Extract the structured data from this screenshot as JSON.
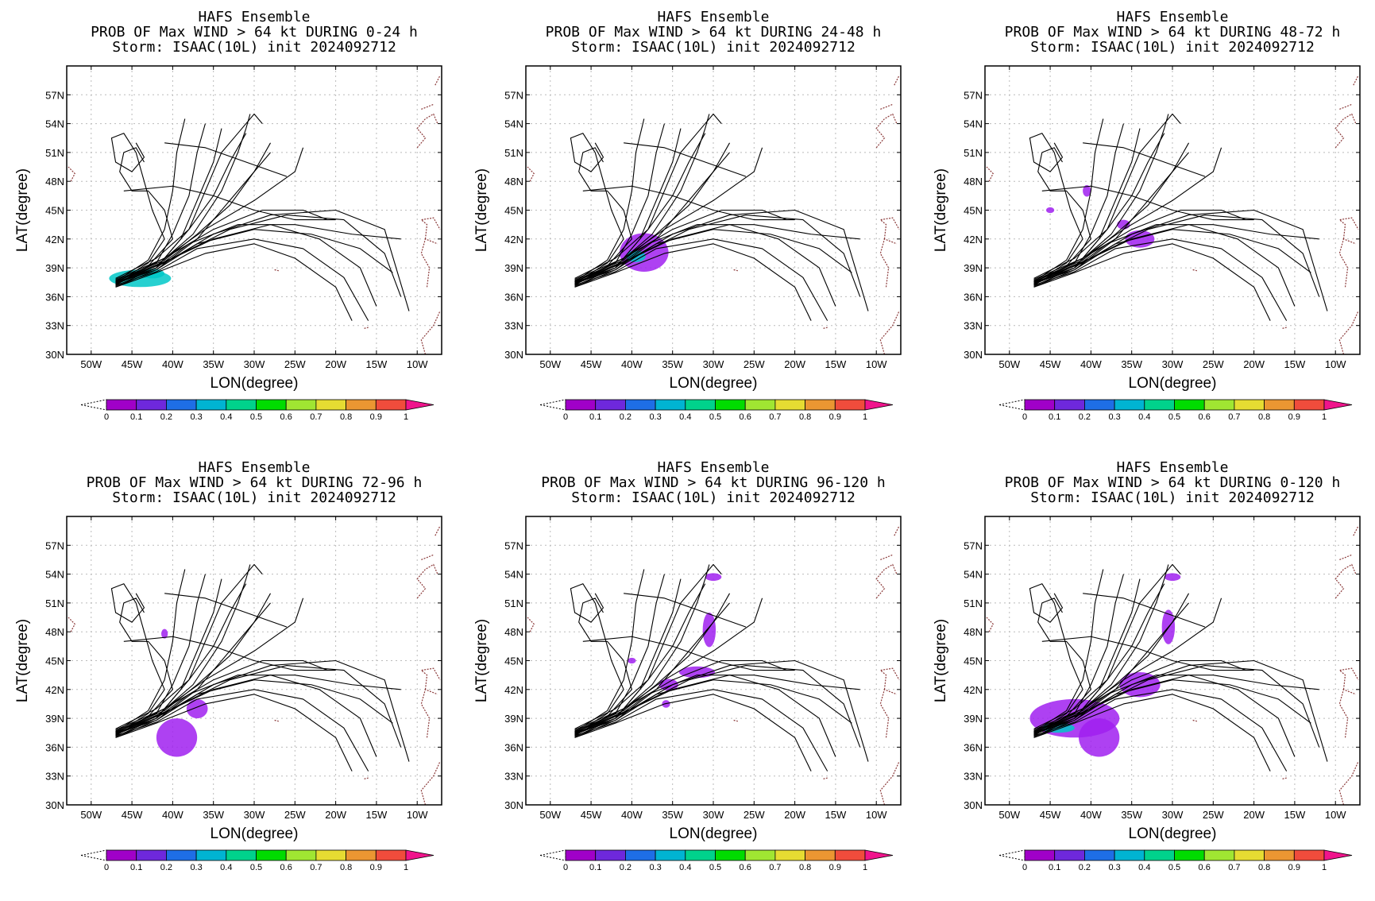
{
  "colors": {
    "track": "#000000",
    "coast": "#8b3a3a",
    "grid": "#bbbbbb",
    "prob": "#a020f0",
    "prob_high": "#00c8c8"
  },
  "colorbar": {
    "labels": [
      "0",
      "0.1",
      "0.2",
      "0.3",
      "0.4",
      "0.5",
      "0.6",
      "0.7",
      "0.8",
      "0.9",
      "1"
    ],
    "colors": [
      "#a000c8",
      "#6e28dc",
      "#1e6ee6",
      "#00b4d2",
      "#00d28c",
      "#00dc00",
      "#a0e632",
      "#e6dc32",
      "#eb9632",
      "#f04c3c",
      "#f0148c"
    ]
  },
  "chart_data": [
    {
      "type": "heatmap",
      "title": "HAFS Ensemble",
      "subtitle": "PROB OF Max WIND > 64 kt DURING  0-24 h",
      "storm": "Storm: ISAAC(10L) init 2024092712",
      "xlabel": "LON(degree)",
      "ylabel": "LAT(degree)",
      "x_ticks": [
        "50W",
        "45W",
        "40W",
        "35W",
        "30W",
        "25W",
        "20W",
        "15W",
        "10W"
      ],
      "y_ticks": [
        "30N",
        "33N",
        "36N",
        "39N",
        "42N",
        "45N",
        "48N",
        "51N",
        "54N",
        "57N"
      ],
      "xlim": [
        -53,
        -7
      ],
      "ylim": [
        30,
        60
      ],
      "prob_regions": [
        {
          "lon": -44,
          "lat": 37.9,
          "rx": 3.8,
          "ry": 0.9,
          "p": 0.3
        },
        {
          "lon": -42.5,
          "lat": 38.4,
          "rx": 1.5,
          "ry": 0.5,
          "p": 0.5
        }
      ]
    },
    {
      "type": "heatmap",
      "title": "HAFS Ensemble",
      "subtitle": "PROB OF Max WIND > 64 kt DURING 24-48 h",
      "storm": "Storm: ISAAC(10L) init 2024092712",
      "xlabel": "LON(degree)",
      "ylabel": "LAT(degree)",
      "x_ticks": [
        "50W",
        "45W",
        "40W",
        "35W",
        "30W",
        "25W",
        "20W",
        "15W",
        "10W"
      ],
      "y_ticks": [
        "30N",
        "33N",
        "36N",
        "39N",
        "42N",
        "45N",
        "48N",
        "51N",
        "54N",
        "57N"
      ],
      "xlim": [
        -53,
        -7
      ],
      "ylim": [
        30,
        60
      ],
      "prob_regions": [
        {
          "lon": -38.5,
          "lat": 40.6,
          "rx": 3,
          "ry": 2,
          "p": 0.2
        },
        {
          "lon": -39.5,
          "lat": 40.2,
          "rx": 1.2,
          "ry": 0.6,
          "p": 0.4
        }
      ]
    },
    {
      "type": "heatmap",
      "title": "HAFS Ensemble",
      "subtitle": "PROB OF Max WIND > 64 kt DURING 48-72 h",
      "storm": "Storm: ISAAC(10L) init 2024092712",
      "xlabel": "LON(degree)",
      "ylabel": "LAT(degree)",
      "x_ticks": [
        "50W",
        "45W",
        "40W",
        "35W",
        "30W",
        "25W",
        "20W",
        "15W",
        "10W"
      ],
      "y_ticks": [
        "30N",
        "33N",
        "36N",
        "39N",
        "42N",
        "45N",
        "48N",
        "51N",
        "54N",
        "57N"
      ],
      "xlim": [
        -53,
        -7
      ],
      "ylim": [
        30,
        60
      ],
      "prob_regions": [
        {
          "lon": -34,
          "lat": 42,
          "rx": 1.8,
          "ry": 0.9,
          "p": 0.1
        },
        {
          "lon": -36,
          "lat": 43.5,
          "rx": 0.8,
          "ry": 0.5,
          "p": 0.1
        },
        {
          "lon": -40.5,
          "lat": 47,
          "rx": 0.5,
          "ry": 0.6,
          "p": 0.1
        },
        {
          "lon": -45,
          "lat": 45,
          "rx": 0.5,
          "ry": 0.3,
          "p": 0.1
        }
      ]
    },
    {
      "type": "heatmap",
      "title": "HAFS Ensemble",
      "subtitle": "PROB OF Max WIND > 64 kt DURING 72-96 h",
      "storm": "Storm: ISAAC(10L) init 2024092712",
      "xlabel": "LON(degree)",
      "ylabel": "LAT(degree)",
      "x_ticks": [
        "50W",
        "45W",
        "40W",
        "35W",
        "30W",
        "25W",
        "20W",
        "15W",
        "10W"
      ],
      "y_ticks": [
        "30N",
        "33N",
        "36N",
        "39N",
        "42N",
        "45N",
        "48N",
        "51N",
        "54N",
        "57N"
      ],
      "xlim": [
        -53,
        -7
      ],
      "ylim": [
        30,
        60
      ],
      "prob_regions": [
        {
          "lon": -39.5,
          "lat": 37,
          "rx": 2.5,
          "ry": 2,
          "p": 0.1
        },
        {
          "lon": -37,
          "lat": 40,
          "rx": 1.3,
          "ry": 1,
          "p": 0.1
        },
        {
          "lon": -41,
          "lat": 47.8,
          "rx": 0.4,
          "ry": 0.5,
          "p": 0.1
        }
      ]
    },
    {
      "type": "heatmap",
      "title": "HAFS Ensemble",
      "subtitle": "PROB OF Max WIND > 64 kt DURING 96-120 h",
      "storm": "Storm: ISAAC(10L) init 2024092712",
      "xlabel": "LON(degree)",
      "ylabel": "LAT(degree)",
      "x_ticks": [
        "50W",
        "45W",
        "40W",
        "35W",
        "30W",
        "25W",
        "20W",
        "15W",
        "10W"
      ],
      "y_ticks": [
        "30N",
        "33N",
        "36N",
        "39N",
        "42N",
        "45N",
        "48N",
        "51N",
        "54N",
        "57N"
      ],
      "xlim": [
        -53,
        -7
      ],
      "ylim": [
        30,
        60
      ],
      "prob_regions": [
        {
          "lon": -30.5,
          "lat": 48.2,
          "rx": 0.8,
          "ry": 1.8,
          "p": 0.1
        },
        {
          "lon": -30,
          "lat": 53.7,
          "rx": 1,
          "ry": 0.4,
          "p": 0.1
        },
        {
          "lon": -32,
          "lat": 43.8,
          "rx": 2.2,
          "ry": 0.6,
          "p": 0.1
        },
        {
          "lon": -35.5,
          "lat": 42.5,
          "rx": 1.2,
          "ry": 0.6,
          "p": 0.1
        },
        {
          "lon": -40,
          "lat": 45,
          "rx": 0.5,
          "ry": 0.3,
          "p": 0.1
        },
        {
          "lon": -35.8,
          "lat": 40.5,
          "rx": 0.5,
          "ry": 0.4,
          "p": 0.1
        }
      ]
    },
    {
      "type": "heatmap",
      "title": "HAFS Ensemble",
      "subtitle": "PROB OF Max WIND > 64 kt DURING 0-120 h",
      "storm": "Storm: ISAAC(10L) init 2024092712",
      "xlabel": "LON(degree)",
      "ylabel": "LAT(degree)",
      "x_ticks": [
        "50W",
        "45W",
        "40W",
        "35W",
        "30W",
        "25W",
        "20W",
        "15W",
        "10W"
      ],
      "y_ticks": [
        "30N",
        "33N",
        "36N",
        "39N",
        "42N",
        "45N",
        "48N",
        "51N",
        "54N",
        "57N"
      ],
      "xlim": [
        -53,
        -7
      ],
      "ylim": [
        30,
        60
      ],
      "prob_regions": [
        {
          "lon": -42,
          "lat": 39,
          "rx": 5.5,
          "ry": 2,
          "p": 0.2
        },
        {
          "lon": -39,
          "lat": 37,
          "rx": 2.5,
          "ry": 2,
          "p": 0.1
        },
        {
          "lon": -34,
          "lat": 42.5,
          "rx": 2.5,
          "ry": 1.3,
          "p": 0.1
        },
        {
          "lon": -30.5,
          "lat": 48.5,
          "rx": 0.8,
          "ry": 1.8,
          "p": 0.1
        },
        {
          "lon": -30,
          "lat": 53.7,
          "rx": 1,
          "ry": 0.4,
          "p": 0.1
        },
        {
          "lon": -44,
          "lat": 38,
          "rx": 2,
          "ry": 0.5,
          "p": 0.4
        }
      ]
    }
  ],
  "tracks": [
    [
      [
        -47,
        37.5
      ],
      [
        -42,
        39
      ],
      [
        -38,
        41.5
      ],
      [
        -32,
        43.5
      ],
      [
        -25,
        43.5
      ],
      [
        -18,
        42.5
      ],
      [
        -12,
        42
      ]
    ],
    [
      [
        -47,
        37.4
      ],
      [
        -42,
        38.8
      ],
      [
        -37,
        41.5
      ],
      [
        -30,
        43
      ],
      [
        -23,
        42.5
      ],
      [
        -17,
        41
      ],
      [
        -13,
        38.5
      ]
    ],
    [
      [
        -47,
        37.2
      ],
      [
        -42,
        38.6
      ],
      [
        -37,
        41
      ],
      [
        -30,
        42
      ],
      [
        -24,
        41
      ],
      [
        -19,
        38
      ],
      [
        -16,
        33.5
      ]
    ],
    [
      [
        -47,
        37
      ],
      [
        -42,
        38.5
      ],
      [
        -36,
        40.5
      ],
      [
        -30,
        41.5
      ],
      [
        -25,
        40
      ],
      [
        -20,
        37
      ],
      [
        -18,
        33.5
      ]
    ],
    [
      [
        -47,
        37.6
      ],
      [
        -41,
        39.5
      ],
      [
        -35,
        42.5
      ],
      [
        -28,
        44.5
      ],
      [
        -20,
        45
      ],
      [
        -14,
        43
      ],
      [
        -11,
        34.5
      ]
    ],
    [
      [
        -47,
        37.8
      ],
      [
        -41,
        40
      ],
      [
        -36,
        43
      ],
      [
        -30,
        46
      ],
      [
        -25,
        49
      ],
      [
        -24,
        51.5
      ]
    ],
    [
      [
        -47,
        37.7
      ],
      [
        -41,
        39.8
      ],
      [
        -37,
        42.5
      ],
      [
        -33,
        45.5
      ],
      [
        -30,
        49
      ],
      [
        -28,
        52
      ]
    ],
    [
      [
        -47,
        37.9
      ],
      [
        -42,
        40
      ],
      [
        -38,
        43
      ],
      [
        -35,
        46.5
      ],
      [
        -33,
        50
      ],
      [
        -31,
        53
      ]
    ],
    [
      [
        -47,
        37.3
      ],
      [
        -42,
        39
      ],
      [
        -39,
        42
      ],
      [
        -37,
        46
      ],
      [
        -35,
        50
      ],
      [
        -34,
        53.5
      ]
    ],
    [
      [
        -47,
        37.5
      ],
      [
        -42,
        39.5
      ],
      [
        -40,
        42.5
      ],
      [
        -38,
        46.5
      ],
      [
        -37,
        51
      ],
      [
        -36,
        54
      ]
    ],
    [
      [
        -47,
        37.6
      ],
      [
        -43,
        39.8
      ],
      [
        -41,
        43
      ],
      [
        -40,
        47
      ],
      [
        -39.5,
        51
      ],
      [
        -38.5,
        54.5
      ]
    ],
    [
      [
        -47,
        37.4
      ],
      [
        -43,
        39.5
      ],
      [
        -41,
        42
      ],
      [
        -42.5,
        45
      ],
      [
        -43.5,
        48
      ],
      [
        -44.5,
        51
      ],
      [
        -46,
        53
      ],
      [
        -47.5,
        52.5
      ],
      [
        -47,
        50
      ],
      [
        -45,
        49
      ],
      [
        -43.5,
        50.5
      ],
      [
        -44.5,
        52
      ]
    ],
    [
      [
        -47,
        37.2
      ],
      [
        -43,
        39.2
      ],
      [
        -40,
        42
      ],
      [
        -41,
        45
      ],
      [
        -43,
        47
      ],
      [
        -45,
        47
      ],
      [
        -46.5,
        49
      ],
      [
        -46,
        51
      ],
      [
        -44.5,
        51.5
      ],
      [
        -43.5,
        50
      ]
    ],
    [
      [
        -47,
        37.1
      ],
      [
        -42,
        39
      ],
      [
        -38,
        43
      ],
      [
        -36,
        47
      ],
      [
        -34,
        51
      ],
      [
        -32,
        53
      ],
      [
        -30,
        55
      ],
      [
        -29,
        54
      ]
    ],
    [
      [
        -47,
        37.3
      ],
      [
        -42,
        39.2
      ],
      [
        -37.5,
        42.5
      ],
      [
        -34,
        47
      ],
      [
        -32,
        51
      ],
      [
        -31,
        53.5
      ],
      [
        -30.5,
        55
      ]
    ],
    [
      [
        -47,
        37
      ],
      [
        -42,
        38.8
      ],
      [
        -37,
        42
      ],
      [
        -33,
        46
      ],
      [
        -30,
        49
      ],
      [
        -28,
        51
      ]
    ],
    [
      [
        -47,
        37.5
      ],
      [
        -41,
        40
      ],
      [
        -35,
        43
      ],
      [
        -29,
        45
      ],
      [
        -24,
        45
      ],
      [
        -21,
        44
      ]
    ],
    [
      [
        -46,
        47
      ],
      [
        -40,
        47.5
      ],
      [
        -35,
        46.5
      ],
      [
        -30,
        45
      ],
      [
        -25,
        44
      ],
      [
        -20,
        44
      ]
    ],
    [
      [
        -41,
        52
      ],
      [
        -36,
        51.5
      ],
      [
        -31,
        50
      ],
      [
        -26,
        48.5
      ]
    ],
    [
      [
        -47,
        37.4
      ],
      [
        -41,
        39.6
      ],
      [
        -35,
        42
      ],
      [
        -28,
        43.5
      ],
      [
        -22,
        42
      ],
      [
        -17,
        39
      ],
      [
        -15,
        35
      ]
    ],
    [
      [
        -47,
        37.6
      ],
      [
        -40,
        40
      ],
      [
        -33,
        43
      ],
      [
        -26,
        44.5
      ],
      [
        -19,
        44
      ],
      [
        -14,
        40.5
      ],
      [
        -12,
        36
      ]
    ]
  ]
}
